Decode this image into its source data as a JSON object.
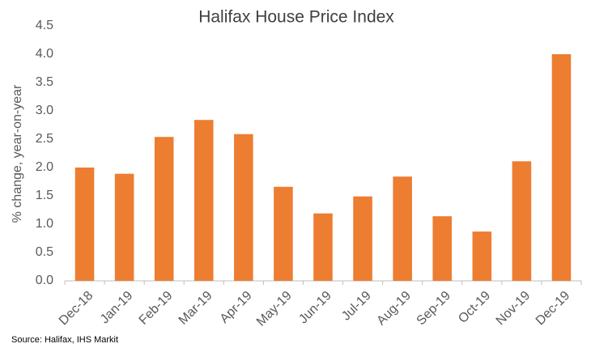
{
  "chart_data": {
    "type": "bar",
    "title": "Halifax House Price Index",
    "y_label": "% change, year-on-year",
    "source": "Source: Halifax, IHS Markit",
    "categories": [
      "Dec-18",
      "Jan-19",
      "Feb-19",
      "Mar-19",
      "Apr-19",
      "May-19",
      "Jun-19",
      "Jul-19",
      "Aug-19",
      "Sep-19",
      "Oct-19",
      "Nov-19",
      "Dec-19"
    ],
    "values": [
      2.0,
      1.89,
      2.54,
      2.84,
      2.59,
      1.66,
      1.19,
      1.49,
      1.84,
      1.14,
      0.87,
      2.11,
      4.0
    ],
    "color": "#ed7d31",
    "ylim": [
      0,
      4.5
    ],
    "yticks": [
      {
        "value": 0,
        "label": "0.0"
      },
      0.5,
      {
        "value": 1,
        "label": "1.0"
      },
      1.5,
      {
        "value": 2,
        "label": "2.0"
      },
      2.5,
      {
        "value": 3,
        "label": "3.0"
      },
      3.5,
      {
        "value": 4,
        "label": "4.0"
      },
      4.5
    ],
    "grid": false
  }
}
